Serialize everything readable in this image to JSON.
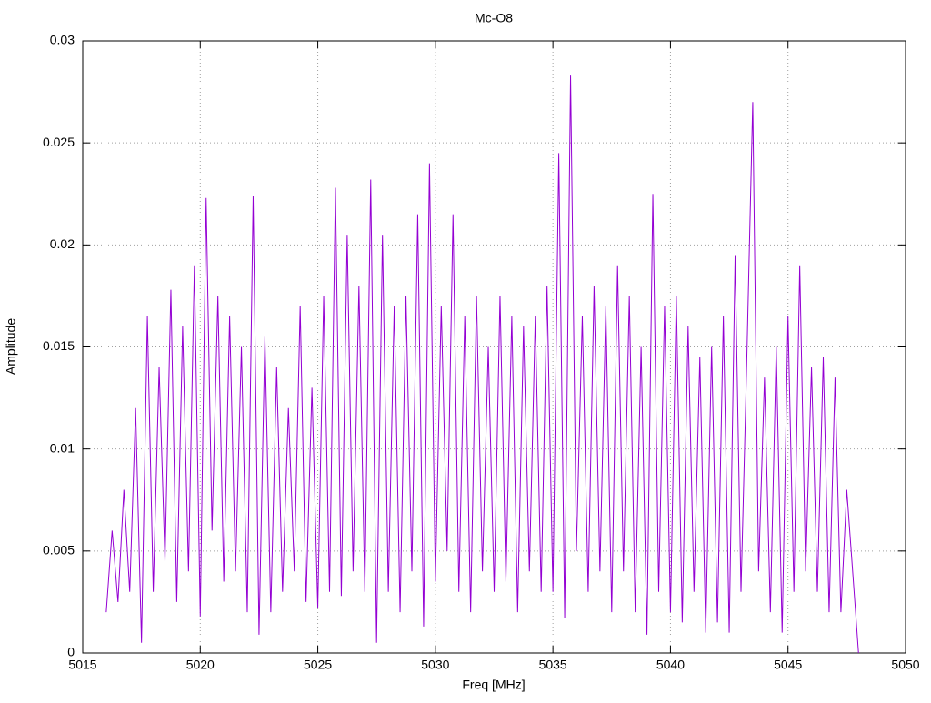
{
  "chart_data": {
    "type": "line",
    "title": "Mc-O8",
    "x_label": "Freq [MHz]",
    "y_label": "Amplitude",
    "xlim": [
      5015,
      5050
    ],
    "xticks": [
      5015,
      5020,
      5025,
      5030,
      5035,
      5040,
      5045,
      5050
    ],
    "ylim": [
      0,
      0.03
    ],
    "yticks": [
      0,
      0.005,
      0.01,
      0.015,
      0.02,
      0.025,
      0.03
    ],
    "grid": true,
    "series": [
      {
        "color": "#9400d3",
        "x": [
          5016,
          5016.25,
          5016.5,
          5016.75,
          5017,
          5017.25,
          5017.5,
          5017.75,
          5018,
          5018.25,
          5018.5,
          5018.75,
          5019,
          5019.25,
          5019.5,
          5019.75,
          5020,
          5020.25,
          5020.5,
          5020.75,
          5021,
          5021.25,
          5021.5,
          5021.75,
          5022,
          5022.25,
          5022.5,
          5022.75,
          5023,
          5023.25,
          5023.5,
          5023.75,
          5024,
          5024.25,
          5024.5,
          5024.75,
          5025,
          5025.25,
          5025.5,
          5025.75,
          5026,
          5026.25,
          5026.5,
          5026.75,
          5027,
          5027.25,
          5027.5,
          5027.75,
          5028,
          5028.25,
          5028.5,
          5028.75,
          5029,
          5029.25,
          5029.5,
          5029.75,
          5030,
          5030.25,
          5030.5,
          5030.75,
          5031,
          5031.25,
          5031.5,
          5031.75,
          5032,
          5032.25,
          5032.5,
          5032.75,
          5033,
          5033.25,
          5033.5,
          5033.75,
          5034,
          5034.25,
          5034.5,
          5034.75,
          5035,
          5035.25,
          5035.5,
          5035.75,
          5036,
          5036.25,
          5036.5,
          5036.75,
          5037,
          5037.25,
          5037.5,
          5037.75,
          5038,
          5038.25,
          5038.5,
          5038.75,
          5039,
          5039.25,
          5039.5,
          5039.75,
          5040,
          5040.25,
          5040.5,
          5040.75,
          5041,
          5041.25,
          5041.5,
          5041.75,
          5042,
          5042.25,
          5042.5,
          5042.75,
          5043,
          5043.25,
          5043.5,
          5043.75,
          5044,
          5044.25,
          5044.5,
          5044.75,
          5045,
          5045.25,
          5045.5,
          5045.75,
          5046,
          5046.25,
          5046.5,
          5046.75,
          5047,
          5047.25,
          5047.5,
          5047.75,
          5048
        ],
        "values": [
          0.002,
          0.006,
          0.0025,
          0.008,
          0.003,
          0.012,
          0.0005,
          0.0165,
          0.003,
          0.014,
          0.0045,
          0.0178,
          0.0025,
          0.016,
          0.004,
          0.019,
          0.0018,
          0.0223,
          0.006,
          0.0175,
          0.0035,
          0.0165,
          0.004,
          0.015,
          0.002,
          0.0224,
          0.0009,
          0.0155,
          0.002,
          0.014,
          0.003,
          0.012,
          0.004,
          0.017,
          0.0025,
          0.013,
          0.0022,
          0.0175,
          0.003,
          0.0228,
          0.0028,
          0.0205,
          0.004,
          0.018,
          0.003,
          0.0232,
          0.0005,
          0.0205,
          0.003,
          0.017,
          0.002,
          0.0175,
          0.004,
          0.0215,
          0.0013,
          0.024,
          0.0035,
          0.017,
          0.005,
          0.0215,
          0.003,
          0.0165,
          0.002,
          0.0175,
          0.004,
          0.015,
          0.003,
          0.0175,
          0.0035,
          0.0165,
          0.002,
          0.016,
          0.004,
          0.0165,
          0.003,
          0.018,
          0.003,
          0.0245,
          0.0017,
          0.0283,
          0.005,
          0.0165,
          0.003,
          0.018,
          0.004,
          0.017,
          0.002,
          0.019,
          0.004,
          0.0175,
          0.002,
          0.015,
          0.0009,
          0.0225,
          0.003,
          0.017,
          0.002,
          0.0175,
          0.0015,
          0.016,
          0.003,
          0.0145,
          0.001,
          0.015,
          0.0015,
          0.0165,
          0.001,
          0.0195,
          0.003,
          0.0145,
          0.027,
          0.004,
          0.0135,
          0.002,
          0.015,
          0.001,
          0.0165,
          0.003,
          0.019,
          0.004,
          0.014,
          0.003,
          0.0145,
          0.002,
          0.0135,
          0.002,
          0.008,
          0.004,
          0
        ]
      }
    ]
  }
}
